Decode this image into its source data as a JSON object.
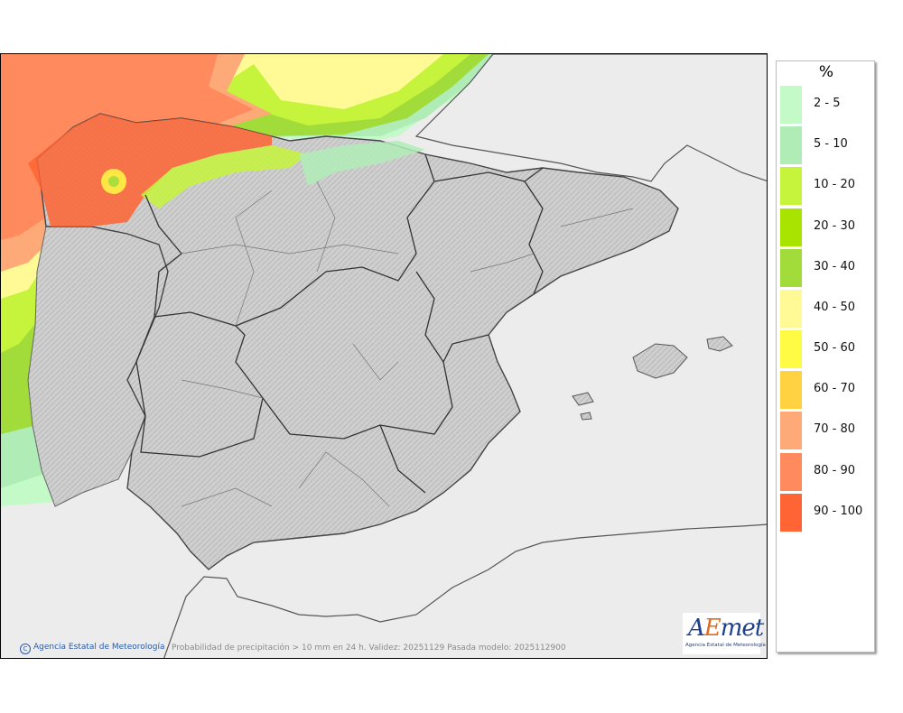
{
  "legend": {
    "unit": "%",
    "items": [
      {
        "label": "2 - 5",
        "color": "#c4fac8"
      },
      {
        "label": "5 - 10",
        "color": "#b0ecb6"
      },
      {
        "label": "10 - 20",
        "color": "#c6f43c"
      },
      {
        "label": "20 - 30",
        "color": "#a8e400"
      },
      {
        "label": "30 - 40",
        "color": "#a2dc3a"
      },
      {
        "label": "40 - 50",
        "color": "#fffa96"
      },
      {
        "label": "50 - 60",
        "color": "#fffa44"
      },
      {
        "label": "60 - 70",
        "color": "#fed240"
      },
      {
        "label": "70 - 80",
        "color": "#feaa78"
      },
      {
        "label": "80 - 90",
        "color": "#fe8a5e"
      },
      {
        "label": "90 - 100",
        "color": "#fe6434"
      }
    ]
  },
  "footer": {
    "credit": "Agencia Estatal de Meteorología",
    "caption": "Probabilidad de precipitación > 10 mm en 24 h. Validez: 20251129 Pasada modelo: 2025112900"
  },
  "logo": {
    "name": "AEMET",
    "subtitle": "Agencia Estatal de Meteorología"
  }
}
